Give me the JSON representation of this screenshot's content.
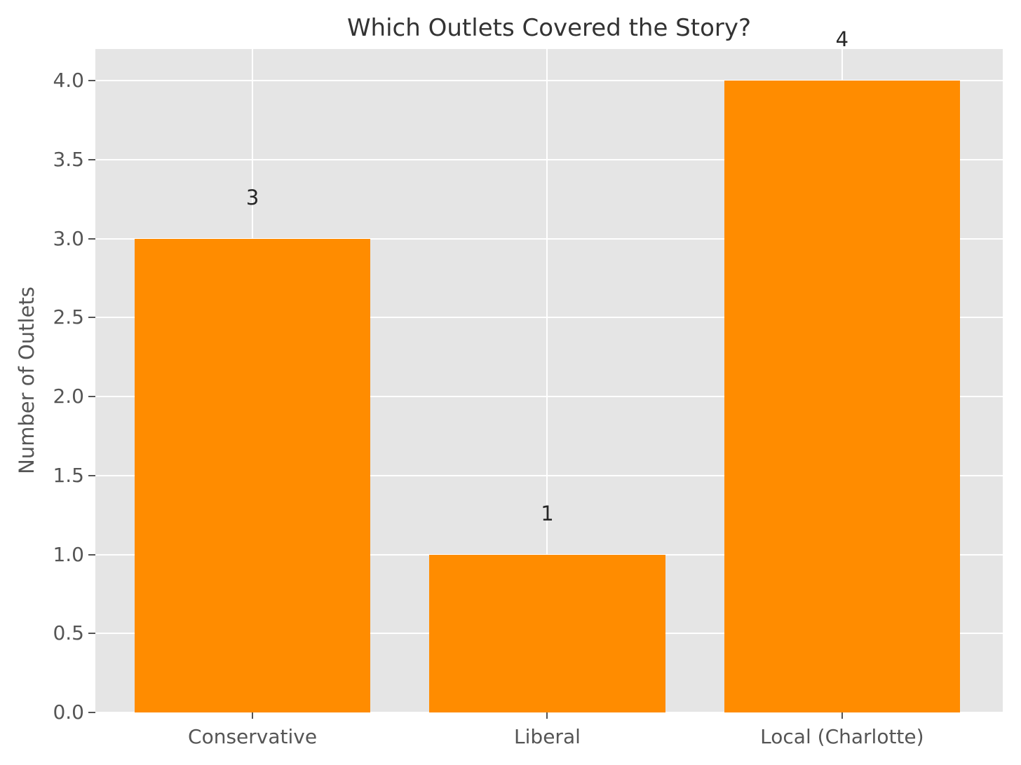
{
  "chart_data": {
    "type": "bar",
    "title": "Which Outlets Covered the Story?",
    "xlabel": "",
    "ylabel": "Number of Outlets",
    "categories": [
      "Conservative",
      "Liberal",
      "Local (Charlotte)"
    ],
    "values": [
      3,
      1,
      4
    ],
    "bar_value_labels": [
      "3",
      "1",
      "4"
    ],
    "ytick_labels": [
      "0.0",
      "0.5",
      "1.0",
      "1.5",
      "2.0",
      "2.5",
      "3.0",
      "3.5",
      "4.0"
    ],
    "yticks": [
      0,
      0.5,
      1,
      1.5,
      2,
      2.5,
      3,
      3.5,
      4
    ],
    "ylim": [
      0,
      4.2
    ],
    "bar_width_fraction": 0.8,
    "grid": true,
    "legend": null,
    "style": "ggplot",
    "colors": {
      "bar": "#FF8C00",
      "plot_background": "#E5E5E5",
      "figure_background": "#FFFFFF",
      "gridline": "#FFFFFF",
      "tick_label": "#555555",
      "axis_label": "#555555",
      "title": "#333333",
      "value_label": "#262626"
    }
  }
}
